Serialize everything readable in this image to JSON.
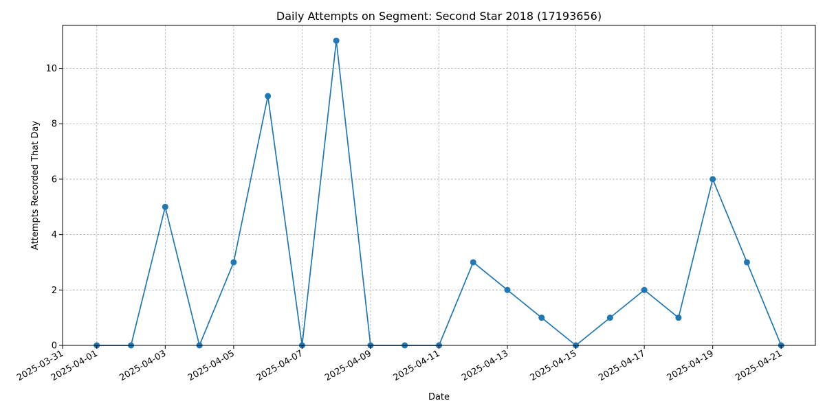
{
  "chart_data": {
    "type": "line",
    "title": "Daily Attempts on Segment: Second Star 2018 (17193656)",
    "xlabel": "Date",
    "ylabel": "Attempts Recorded That Day",
    "x": [
      "2025-04-01",
      "2025-04-02",
      "2025-04-03",
      "2025-04-04",
      "2025-04-05",
      "2025-04-06",
      "2025-04-07",
      "2025-04-08",
      "2025-04-09",
      "2025-04-10",
      "2025-04-11",
      "2025-04-12",
      "2025-04-13",
      "2025-04-14",
      "2025-04-15",
      "2025-04-16",
      "2025-04-17",
      "2025-04-18",
      "2025-04-19",
      "2025-04-20",
      "2025-04-21"
    ],
    "series": [
      {
        "values": [
          0,
          0,
          5,
          0,
          3,
          9,
          0,
          11,
          0,
          0,
          0,
          3,
          2,
          1,
          0,
          1,
          2,
          1,
          6,
          3,
          0
        ]
      }
    ],
    "xlim": [
      "2025-03-31",
      "2025-04-22"
    ],
    "ylim": [
      0,
      11.55
    ],
    "x_ticks": [
      "2025-03-31",
      "2025-04-01",
      "2025-04-03",
      "2025-04-05",
      "2025-04-07",
      "2025-04-09",
      "2025-04-11",
      "2025-04-13",
      "2025-04-15",
      "2025-04-17",
      "2025-04-19",
      "2025-04-21"
    ],
    "y_ticks": [
      "0",
      "2",
      "4",
      "6",
      "8",
      "10"
    ],
    "grid": true,
    "line_color": "#1f77b4",
    "marker": "circle"
  }
}
